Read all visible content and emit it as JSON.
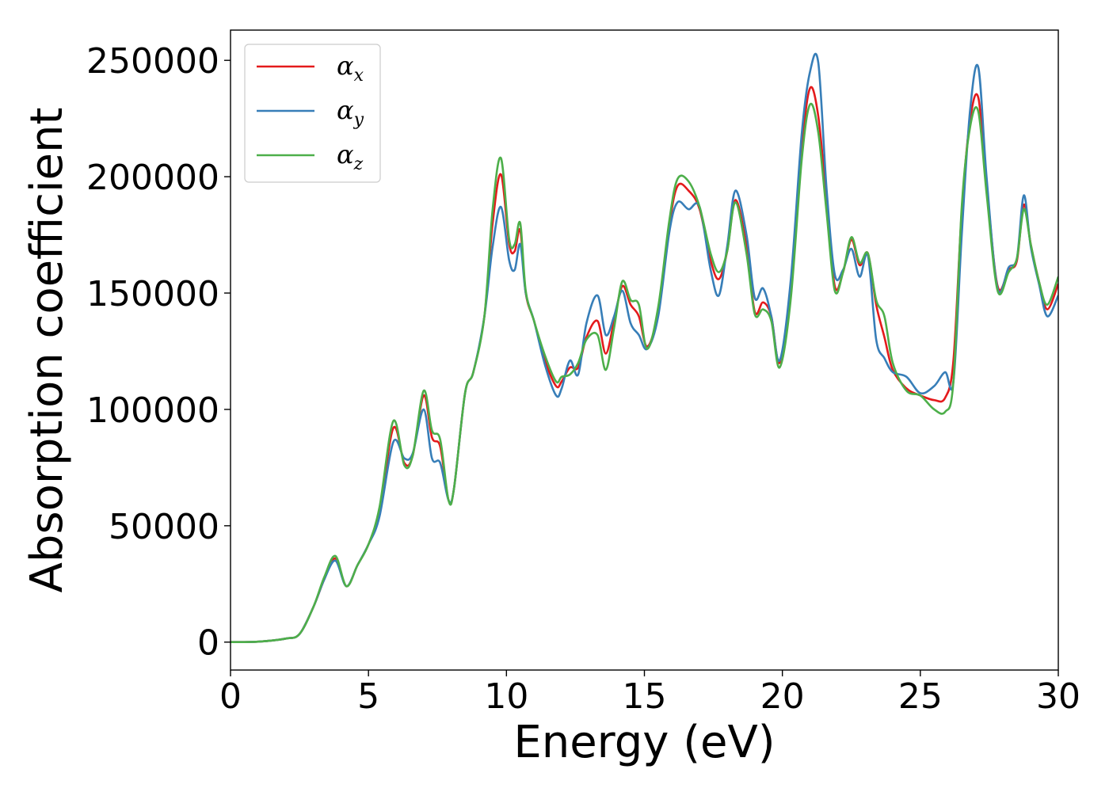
{
  "chart_data": {
    "type": "line",
    "xlabel": "Energy (eV)",
    "ylabel": "Absorption coefficient",
    "xlim": [
      0,
      30
    ],
    "ylim": [
      -12000,
      263000
    ],
    "xticks": [
      0,
      5,
      10,
      15,
      20,
      25,
      30
    ],
    "yticks": [
      0,
      50000,
      100000,
      150000,
      200000,
      250000
    ],
    "grid": false,
    "legend_position": "top-left",
    "x": [
      0,
      1,
      2,
      2.5,
      3,
      3.4,
      3.8,
      4.2,
      4.6,
      5,
      5.4,
      5.9,
      6.3,
      6.6,
      7,
      7.3,
      7.6,
      7.9,
      8.1,
      8.5,
      8.8,
      9.2,
      9.5,
      9.8,
      10.1,
      10.3,
      10.5,
      10.7,
      11,
      11.4,
      11.8,
      12,
      12.3,
      12.6,
      12.9,
      13.3,
      13.6,
      13.9,
      14.2,
      14.5,
      14.8,
      15.1,
      15.5,
      15.9,
      16.2,
      16.6,
      17,
      17.4,
      17.7,
      18,
      18.3,
      18.7,
      19,
      19.3,
      19.6,
      19.9,
      20.3,
      20.7,
      21,
      21.3,
      21.6,
      21.9,
      22.2,
      22.5,
      22.8,
      23.1,
      23.4,
      23.7,
      24,
      24.5,
      25,
      25.5,
      25.9,
      26.2,
      26.5,
      26.8,
      27.1,
      27.4,
      27.8,
      28.2,
      28.5,
      28.75,
      29,
      29.3,
      29.6,
      30
    ],
    "series": [
      {
        "name": "α_x",
        "name_base": "α",
        "name_sub": "x",
        "color": "#e41a1c",
        "values": [
          0,
          200,
          1500,
          3500,
          15000,
          27000,
          36000,
          24000,
          33000,
          42000,
          56000,
          92000,
          77000,
          80000,
          106000,
          88000,
          84000,
          61000,
          66000,
          107000,
          116000,
          140000,
          180000,
          201000,
          171000,
          168000,
          177000,
          150000,
          138000,
          121000,
          110000,
          112000,
          118000,
          118000,
          131000,
          138000,
          124000,
          138000,
          153000,
          145000,
          140000,
          127000,
          142000,
          179000,
          196000,
          194000,
          186000,
          164000,
          156000,
          168000,
          190000,
          170000,
          142000,
          146000,
          140000,
          120000,
          150000,
          211000,
          238000,
          226000,
          190000,
          153000,
          159000,
          173000,
          162000,
          167000,
          145000,
          131000,
          117000,
          109000,
          106000,
          104000,
          105000,
          121000,
          185000,
          224000,
          234000,
          197000,
          153000,
          160000,
          164000,
          188000,
          171000,
          155000,
          143000,
          154000
        ]
      },
      {
        "name": "α_y",
        "name_base": "α",
        "name_sub": "y",
        "color": "#377eb8",
        "values": [
          0,
          200,
          1500,
          3500,
          15000,
          27000,
          35000,
          24000,
          33000,
          42000,
          54000,
          86000,
          79000,
          81000,
          100000,
          79000,
          77000,
          61000,
          66000,
          107000,
          116000,
          140000,
          170000,
          187000,
          164000,
          160000,
          171000,
          150000,
          138000,
          119000,
          106000,
          109000,
          121000,
          115000,
          137000,
          149000,
          132000,
          140000,
          151000,
          137000,
          132000,
          126000,
          140000,
          176000,
          189000,
          186000,
          187000,
          160000,
          149000,
          170000,
          194000,
          175000,
          148000,
          152000,
          140000,
          121000,
          155000,
          218000,
          245000,
          249000,
          195000,
          158000,
          160000,
          169000,
          157000,
          166000,
          130000,
          122000,
          116000,
          114000,
          107000,
          110000,
          116000,
          112000,
          175000,
          228000,
          247000,
          200000,
          152000,
          161000,
          165000,
          192000,
          170000,
          154000,
          140000,
          149000
        ]
      },
      {
        "name": "α_z",
        "name_base": "α",
        "name_sub": "z",
        "color": "#4daf4a",
        "values": [
          0,
          200,
          1500,
          3500,
          15000,
          28000,
          37000,
          24000,
          33000,
          42000,
          58000,
          95000,
          76000,
          80000,
          108000,
          91000,
          87000,
          61000,
          66000,
          107000,
          116000,
          140000,
          186000,
          208000,
          173000,
          171000,
          180000,
          151000,
          138000,
          123000,
          112000,
          114000,
          115000,
          120000,
          130000,
          132000,
          117000,
          135000,
          155000,
          147000,
          145000,
          126000,
          144000,
          181000,
          199000,
          198000,
          187000,
          167000,
          159000,
          168000,
          189000,
          167000,
          141000,
          143000,
          138000,
          118000,
          147000,
          207000,
          231000,
          219000,
          185000,
          151000,
          159000,
          174000,
          163000,
          167000,
          147000,
          140000,
          120000,
          108000,
          106000,
          100000,
          99000,
          112000,
          187000,
          221000,
          228000,
          193000,
          151000,
          159000,
          165000,
          186000,
          171000,
          155000,
          145000,
          157000
        ]
      }
    ]
  }
}
